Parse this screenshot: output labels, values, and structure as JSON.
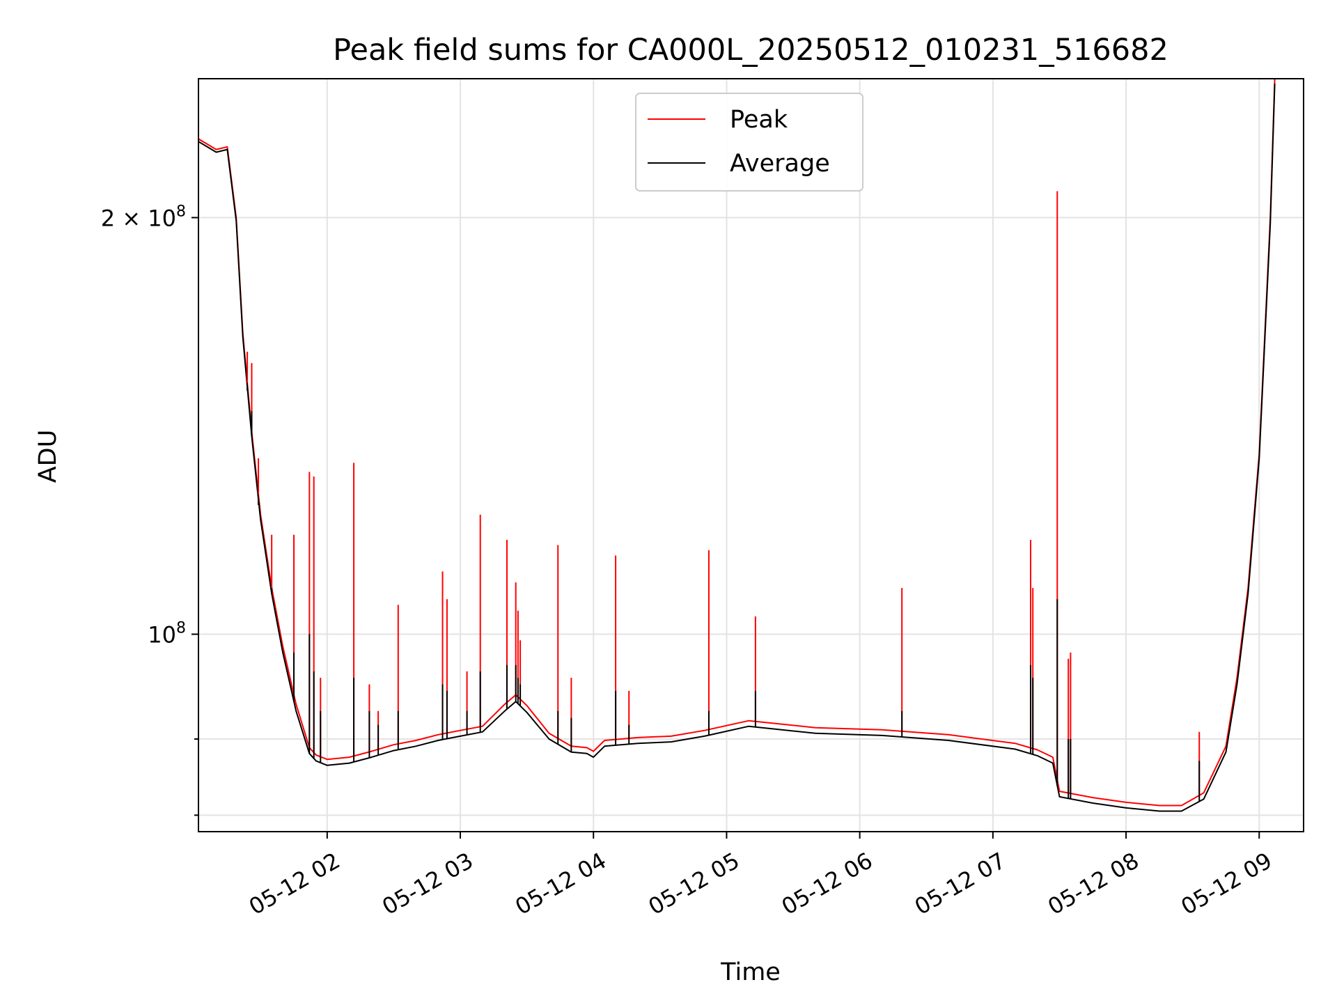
{
  "chart_data": {
    "type": "line",
    "title": "Peak field sums for CA000L_20250512_010231_516682",
    "xlabel": "Time",
    "ylabel": "ADU",
    "yscale": "log",
    "ylim": [
      72000000,
      252000000
    ],
    "xlim": [
      "2025-05-12 01:02",
      "2025-05-12 09:20"
    ],
    "grid": true,
    "legend_position": "top-center",
    "colors": {
      "Peak": "#ff0000",
      "Average": "#000000"
    },
    "x_tick_labels": [
      "05-12 02",
      "05-12 03",
      "05-12 04",
      "05-12 05",
      "05-12 06",
      "05-12 07",
      "05-12 08",
      "05-12 09"
    ],
    "x_tick_values": [
      "2025-05-12 02:00",
      "2025-05-12 03:00",
      "2025-05-12 04:00",
      "2025-05-12 05:00",
      "2025-05-12 06:00",
      "2025-05-12 07:00",
      "2025-05-12 08:00",
      "2025-05-12 09:00"
    ],
    "y_major_ticks": [
      {
        "value": 100000000,
        "base": "10",
        "exp": "8"
      },
      {
        "value": 200000000,
        "base": "2 × 10",
        "exp": "8"
      }
    ],
    "y_minor_ticks": [
      74000000,
      84000000
    ],
    "series": [
      {
        "name": "Peak",
        "x": [
          "2025-05-12 01:02",
          "2025-05-12 01:10",
          "2025-05-12 01:15",
          "2025-05-12 01:19",
          "2025-05-12 01:22",
          "2025-05-12 01:26",
          "2025-05-12 01:30",
          "2025-05-12 01:35",
          "2025-05-12 01:40",
          "2025-05-12 01:46",
          "2025-05-12 01:52",
          "2025-05-12 01:55",
          "2025-05-12 02:00",
          "2025-05-12 02:10",
          "2025-05-12 02:20",
          "2025-05-12 02:30",
          "2025-05-12 02:40",
          "2025-05-12 02:50",
          "2025-05-12 03:00",
          "2025-05-12 03:10",
          "2025-05-12 03:20",
          "2025-05-12 03:25",
          "2025-05-12 03:30",
          "2025-05-12 03:40",
          "2025-05-12 03:50",
          "2025-05-12 03:57",
          "2025-05-12 04:00",
          "2025-05-12 04:05",
          "2025-05-12 04:20",
          "2025-05-12 04:35",
          "2025-05-12 04:50",
          "2025-05-12 05:10",
          "2025-05-12 05:40",
          "2025-05-12 06:10",
          "2025-05-12 06:40",
          "2025-05-12 07:10",
          "2025-05-12 07:20",
          "2025-05-12 07:27",
          "2025-05-12 07:30",
          "2025-05-12 07:45",
          "2025-05-12 08:00",
          "2025-05-12 08:15",
          "2025-05-12 08:25",
          "2025-05-12 08:35",
          "2025-05-12 08:45",
          "2025-05-12 08:50",
          "2025-05-12 08:55",
          "2025-05-12 09:00",
          "2025-05-12 09:05",
          "2025-05-12 09:07"
        ],
        "y": [
          228000000,
          224000000,
          225000000,
          200000000,
          165000000,
          140000000,
          122000000,
          108000000,
          98000000,
          89000000,
          82800000,
          81800000,
          81200000,
          81500000,
          82300000,
          83200000,
          83800000,
          84600000,
          85200000,
          85800000,
          89000000,
          90400000,
          88800000,
          84800000,
          83000000,
          82800000,
          82300000,
          83800000,
          84200000,
          84400000,
          85200000,
          86600000,
          85600000,
          85300000,
          84600000,
          83400000,
          82500000,
          81500000,
          77000000,
          76200000,
          75600000,
          75200000,
          75200000,
          76800000,
          83000000,
          93000000,
          108000000,
          135000000,
          200000000,
          252000000
        ]
      },
      {
        "name": "Average",
        "x": [
          "2025-05-12 01:02",
          "2025-05-12 01:10",
          "2025-05-12 01:15",
          "2025-05-12 01:19",
          "2025-05-12 01:22",
          "2025-05-12 01:26",
          "2025-05-12 01:30",
          "2025-05-12 01:35",
          "2025-05-12 01:40",
          "2025-05-12 01:46",
          "2025-05-12 01:52",
          "2025-05-12 01:55",
          "2025-05-12 02:00",
          "2025-05-12 02:10",
          "2025-05-12 02:20",
          "2025-05-12 02:30",
          "2025-05-12 02:40",
          "2025-05-12 02:50",
          "2025-05-12 03:00",
          "2025-05-12 03:10",
          "2025-05-12 03:20",
          "2025-05-12 03:25",
          "2025-05-12 03:30",
          "2025-05-12 03:40",
          "2025-05-12 03:50",
          "2025-05-12 03:57",
          "2025-05-12 04:00",
          "2025-05-12 04:05",
          "2025-05-12 04:20",
          "2025-05-12 04:35",
          "2025-05-12 04:50",
          "2025-05-12 05:10",
          "2025-05-12 05:40",
          "2025-05-12 06:10",
          "2025-05-12 06:40",
          "2025-05-12 07:10",
          "2025-05-12 07:20",
          "2025-05-12 07:27",
          "2025-05-12 07:30",
          "2025-05-12 07:45",
          "2025-05-12 08:00",
          "2025-05-12 08:15",
          "2025-05-12 08:25",
          "2025-05-12 08:35",
          "2025-05-12 08:45",
          "2025-05-12 08:50",
          "2025-05-12 08:55",
          "2025-05-12 09:00",
          "2025-05-12 09:05",
          "2025-05-12 09:07"
        ],
        "y": [
          227000000,
          223000000,
          224000000,
          199000000,
          164000000,
          139000000,
          121000000,
          107000000,
          97000000,
          88000000,
          82000000,
          81000000,
          80400000,
          80700000,
          81500000,
          82400000,
          83000000,
          83800000,
          84400000,
          85000000,
          88000000,
          89400000,
          87800000,
          84000000,
          82200000,
          82000000,
          81500000,
          83000000,
          83400000,
          83600000,
          84400000,
          85800000,
          84800000,
          84500000,
          83800000,
          82600000,
          81700000,
          80700000,
          76300000,
          75500000,
          74900000,
          74500000,
          74500000,
          76000000,
          82200000,
          92000000,
          107000000,
          134000000,
          198000000,
          250000000
        ]
      }
    ],
    "spikes": [
      {
        "x": "2025-05-12 01:24",
        "peak": 160000000,
        "average": 150000000
      },
      {
        "x": "2025-05-12 01:26",
        "peak": 157000000,
        "average": 145000000
      },
      {
        "x": "2025-05-12 01:29",
        "peak": 134000000,
        "average": 124000000
      },
      {
        "x": "2025-05-12 01:35",
        "peak": 118000000,
        "average": 108000000
      },
      {
        "x": "2025-05-12 01:45",
        "peak": 118000000,
        "average": 97000000
      },
      {
        "x": "2025-05-12 01:52",
        "peak": 131000000,
        "average": 100000000
      },
      {
        "x": "2025-05-12 01:54",
        "peak": 130000000,
        "average": 94000000
      },
      {
        "x": "2025-05-12 01:57",
        "peak": 93000000,
        "average": 88000000
      },
      {
        "x": "2025-05-12 02:12",
        "peak": 133000000,
        "average": 93000000
      },
      {
        "x": "2025-05-12 02:19",
        "peak": 92000000,
        "average": 88000000
      },
      {
        "x": "2025-05-12 02:23",
        "peak": 88000000,
        "average": 86000000
      },
      {
        "x": "2025-05-12 02:32",
        "peak": 105000000,
        "average": 88000000
      },
      {
        "x": "2025-05-12 02:52",
        "peak": 111000000,
        "average": 92000000
      },
      {
        "x": "2025-05-12 02:54",
        "peak": 106000000,
        "average": 91000000
      },
      {
        "x": "2025-05-12 03:03",
        "peak": 94000000,
        "average": 88000000
      },
      {
        "x": "2025-05-12 03:09",
        "peak": 122000000,
        "average": 94000000
      },
      {
        "x": "2025-05-12 03:21",
        "peak": 117000000,
        "average": 95000000
      },
      {
        "x": "2025-05-12 03:25",
        "peak": 109000000,
        "average": 95000000
      },
      {
        "x": "2025-05-12 03:26",
        "peak": 104000000,
        "average": 93000000
      },
      {
        "x": "2025-05-12 03:27",
        "peak": 99000000,
        "average": 92000000
      },
      {
        "x": "2025-05-12 03:44",
        "peak": 116000000,
        "average": 88000000
      },
      {
        "x": "2025-05-12 03:50",
        "peak": 93000000,
        "average": 87000000
      },
      {
        "x": "2025-05-12 04:10",
        "peak": 114000000,
        "average": 91000000
      },
      {
        "x": "2025-05-12 04:16",
        "peak": 91000000,
        "average": 86000000
      },
      {
        "x": "2025-05-12 04:52",
        "peak": 115000000,
        "average": 88000000
      },
      {
        "x": "2025-05-12 05:13",
        "peak": 103000000,
        "average": 91000000
      },
      {
        "x": "2025-05-12 06:19",
        "peak": 108000000,
        "average": 88000000
      },
      {
        "x": "2025-05-12 07:17",
        "peak": 117000000,
        "average": 95000000
      },
      {
        "x": "2025-05-12 07:18",
        "peak": 108000000,
        "average": 93000000
      },
      {
        "x": "2025-05-12 07:29",
        "peak": 209000000,
        "average": 106000000
      },
      {
        "x": "2025-05-12 07:34",
        "peak": 96000000,
        "average": 84000000
      },
      {
        "x": "2025-05-12 07:35",
        "peak": 97000000,
        "average": 84000000
      },
      {
        "x": "2025-05-12 08:33",
        "peak": 85000000,
        "average": 81000000
      }
    ]
  }
}
